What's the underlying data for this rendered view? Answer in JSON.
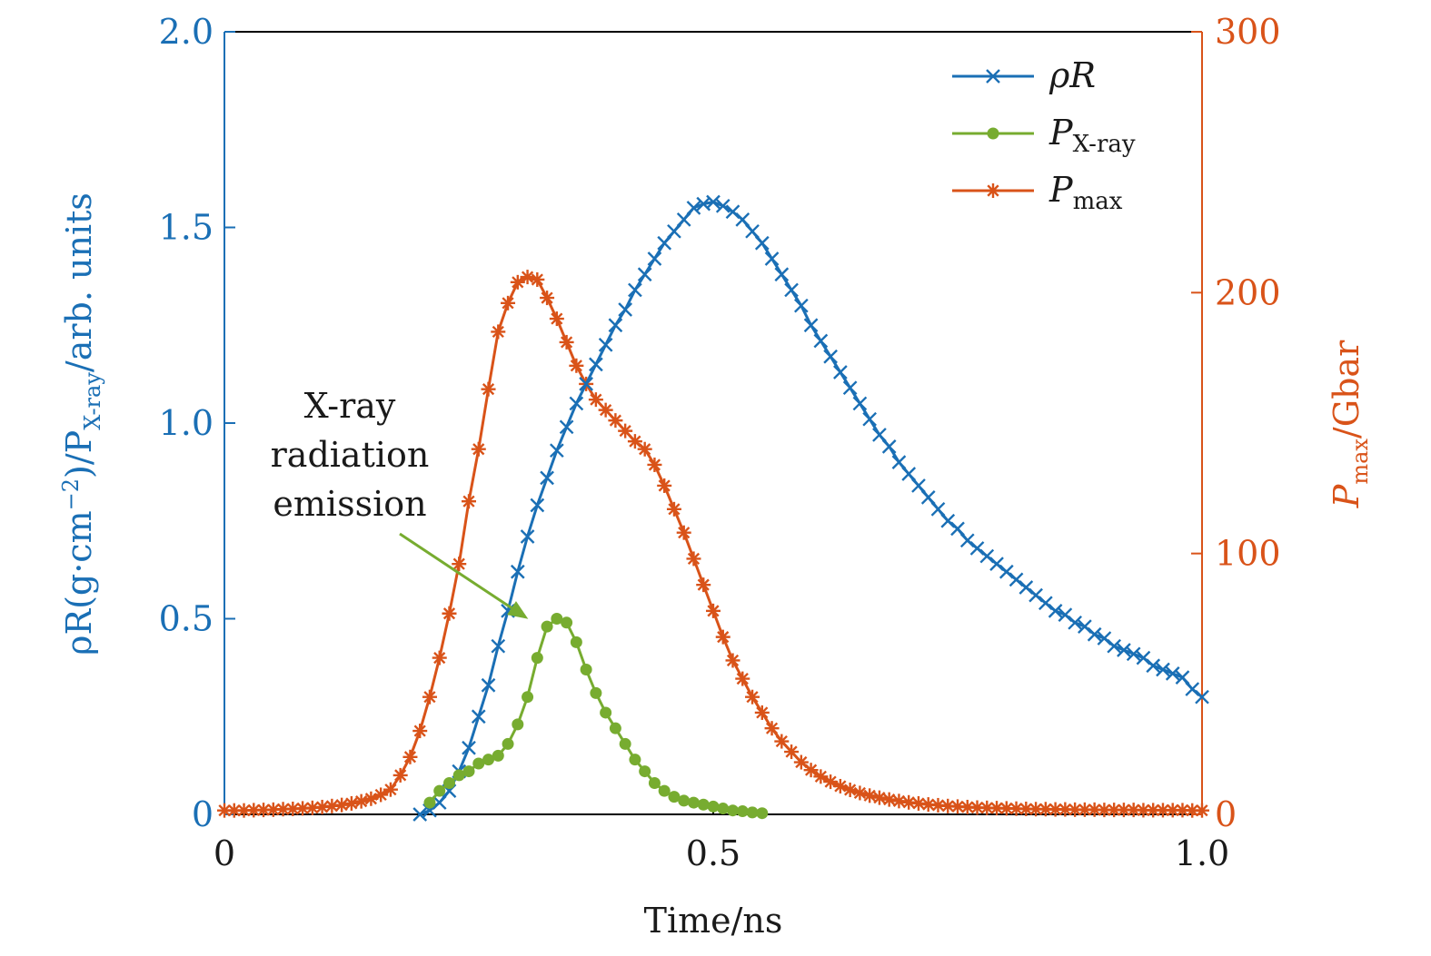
{
  "colors": {
    "rhoR": "#1a6fb5",
    "xray": "#77ac30",
    "pmax": "#d95319",
    "axis": "#000000",
    "text": "#1a1a1a"
  },
  "chart_data": {
    "type": "line",
    "xlabel": "Time/ns",
    "ylabel_left": {
      "prefix": "ρR(g·cm",
      "sup": "−2",
      "mid": ")/P",
      "sub": "X-ray",
      "suffix": "/arb. units"
    },
    "ylabel_right": {
      "base": "P",
      "sub": "max",
      "suffix": "/Gbar"
    },
    "xlim": [
      0,
      1.0
    ],
    "ylim_left": [
      0,
      2.0
    ],
    "ylim_right": [
      0,
      300
    ],
    "x_ticks": [
      {
        "value": 0,
        "label": "0"
      },
      {
        "value": 0.5,
        "label": "0.5"
      },
      {
        "value": 1.0,
        "label": "1.0"
      }
    ],
    "y_left_ticks": [
      {
        "value": 0,
        "label": "0"
      },
      {
        "value": 0.5,
        "label": "0.5"
      },
      {
        "value": 1.0,
        "label": "1.0"
      },
      {
        "value": 1.5,
        "label": "1.5"
      },
      {
        "value": 2.0,
        "label": "2.0"
      }
    ],
    "y_right_ticks": [
      {
        "value": 0,
        "label": "0"
      },
      {
        "value": 100,
        "label": "100"
      },
      {
        "value": 200,
        "label": "200"
      },
      {
        "value": 300,
        "label": "300"
      }
    ],
    "legend_position": "top-right",
    "series": [
      {
        "id": "rhoR",
        "name": "ρR",
        "legend": {
          "base": "ρR",
          "sub": ""
        },
        "axis": "left",
        "marker": "x",
        "x": [
          0.2,
          0.21,
          0.22,
          0.23,
          0.24,
          0.25,
          0.26,
          0.27,
          0.28,
          0.29,
          0.3,
          0.31,
          0.32,
          0.33,
          0.34,
          0.35,
          0.36,
          0.37,
          0.38,
          0.39,
          0.4,
          0.41,
          0.42,
          0.43,
          0.44,
          0.45,
          0.46,
          0.47,
          0.48,
          0.49,
          0.5,
          0.51,
          0.52,
          0.53,
          0.54,
          0.55,
          0.56,
          0.57,
          0.58,
          0.59,
          0.6,
          0.61,
          0.62,
          0.63,
          0.64,
          0.65,
          0.66,
          0.67,
          0.68,
          0.69,
          0.7,
          0.71,
          0.72,
          0.73,
          0.74,
          0.75,
          0.76,
          0.77,
          0.78,
          0.79,
          0.8,
          0.81,
          0.82,
          0.83,
          0.84,
          0.85,
          0.86,
          0.87,
          0.88,
          0.89,
          0.9,
          0.91,
          0.92,
          0.93,
          0.94,
          0.95,
          0.96,
          0.97,
          0.98,
          0.99,
          1.0
        ],
        "y": [
          0.0,
          0.01,
          0.03,
          0.06,
          0.11,
          0.17,
          0.25,
          0.33,
          0.43,
          0.52,
          0.62,
          0.71,
          0.79,
          0.86,
          0.93,
          0.99,
          1.05,
          1.1,
          1.15,
          1.2,
          1.25,
          1.29,
          1.34,
          1.38,
          1.42,
          1.46,
          1.49,
          1.52,
          1.55,
          1.56,
          1.565,
          1.555,
          1.54,
          1.52,
          1.49,
          1.46,
          1.42,
          1.38,
          1.34,
          1.3,
          1.25,
          1.21,
          1.17,
          1.13,
          1.09,
          1.05,
          1.01,
          0.97,
          0.94,
          0.9,
          0.87,
          0.84,
          0.81,
          0.78,
          0.75,
          0.73,
          0.7,
          0.68,
          0.66,
          0.64,
          0.62,
          0.6,
          0.58,
          0.56,
          0.54,
          0.52,
          0.51,
          0.49,
          0.48,
          0.46,
          0.45,
          0.43,
          0.42,
          0.41,
          0.4,
          0.38,
          0.37,
          0.36,
          0.35,
          0.32,
          0.3
        ]
      },
      {
        "id": "xray",
        "name": "P_X-ray",
        "legend": {
          "base": "P",
          "sub": "X-ray"
        },
        "axis": "left",
        "marker": "dot",
        "x": [
          0.21,
          0.22,
          0.23,
          0.24,
          0.25,
          0.26,
          0.27,
          0.28,
          0.29,
          0.3,
          0.31,
          0.32,
          0.33,
          0.34,
          0.35,
          0.36,
          0.37,
          0.38,
          0.39,
          0.4,
          0.41,
          0.42,
          0.43,
          0.44,
          0.45,
          0.46,
          0.47,
          0.48,
          0.49,
          0.5,
          0.51,
          0.52,
          0.53,
          0.54,
          0.55
        ],
        "y": [
          0.03,
          0.06,
          0.08,
          0.1,
          0.11,
          0.13,
          0.14,
          0.15,
          0.18,
          0.23,
          0.3,
          0.4,
          0.48,
          0.5,
          0.49,
          0.44,
          0.37,
          0.31,
          0.26,
          0.22,
          0.18,
          0.14,
          0.11,
          0.08,
          0.06,
          0.045,
          0.035,
          0.03,
          0.025,
          0.02,
          0.015,
          0.01,
          0.008,
          0.005,
          0.003
        ]
      },
      {
        "id": "pmax",
        "name": "P_max",
        "legend": {
          "base": "P",
          "sub": "max"
        },
        "axis": "right",
        "marker": "star",
        "x": [
          0.0,
          0.01,
          0.02,
          0.03,
          0.04,
          0.05,
          0.06,
          0.07,
          0.08,
          0.09,
          0.1,
          0.11,
          0.12,
          0.13,
          0.14,
          0.15,
          0.16,
          0.17,
          0.18,
          0.19,
          0.2,
          0.21,
          0.22,
          0.23,
          0.24,
          0.25,
          0.26,
          0.27,
          0.28,
          0.29,
          0.3,
          0.31,
          0.32,
          0.33,
          0.34,
          0.35,
          0.36,
          0.37,
          0.38,
          0.39,
          0.4,
          0.41,
          0.42,
          0.43,
          0.44,
          0.45,
          0.46,
          0.47,
          0.48,
          0.49,
          0.5,
          0.51,
          0.52,
          0.53,
          0.54,
          0.55,
          0.56,
          0.57,
          0.58,
          0.59,
          0.6,
          0.61,
          0.62,
          0.63,
          0.64,
          0.65,
          0.66,
          0.67,
          0.68,
          0.69,
          0.7,
          0.71,
          0.72,
          0.73,
          0.74,
          0.75,
          0.76,
          0.77,
          0.78,
          0.79,
          0.8,
          0.81,
          0.82,
          0.83,
          0.84,
          0.85,
          0.86,
          0.87,
          0.88,
          0.89,
          0.9,
          0.91,
          0.92,
          0.93,
          0.94,
          0.95,
          0.96,
          0.97,
          0.98,
          0.99,
          1.0
        ],
        "y": [
          1.5,
          1.5,
          1.5,
          1.6,
          1.7,
          1.8,
          2.0,
          2.1,
          2.3,
          2.5,
          2.8,
          3.2,
          3.6,
          4.2,
          5.0,
          6.0,
          7.5,
          9.5,
          15,
          22,
          32,
          45,
          60,
          77,
          96,
          120,
          140,
          163,
          185,
          196,
          204,
          206,
          205,
          198,
          190,
          181,
          172,
          165,
          159,
          155,
          151,
          147,
          143,
          140,
          134,
          126,
          117,
          108,
          98,
          88,
          78,
          68,
          59,
          52,
          45,
          39,
          33,
          28,
          24,
          20,
          17,
          14.5,
          12.5,
          10.8,
          9.4,
          8.2,
          7.2,
          6.4,
          5.7,
          5.1,
          4.6,
          4.2,
          3.8,
          3.5,
          3.2,
          3.0,
          2.8,
          2.6,
          2.5,
          2.4,
          2.3,
          2.2,
          2.1,
          2.0,
          2.0,
          1.9,
          1.9,
          1.8,
          1.8,
          1.8,
          1.7,
          1.7,
          1.7,
          1.7,
          1.6,
          1.6,
          1.6,
          1.6,
          1.6,
          1.5,
          1.5
        ]
      }
    ],
    "annotation": {
      "lines": [
        "X-ray",
        "radiation",
        "emission"
      ],
      "target_x": 0.32,
      "target_y": 0.49,
      "color_ref": "xray"
    }
  }
}
